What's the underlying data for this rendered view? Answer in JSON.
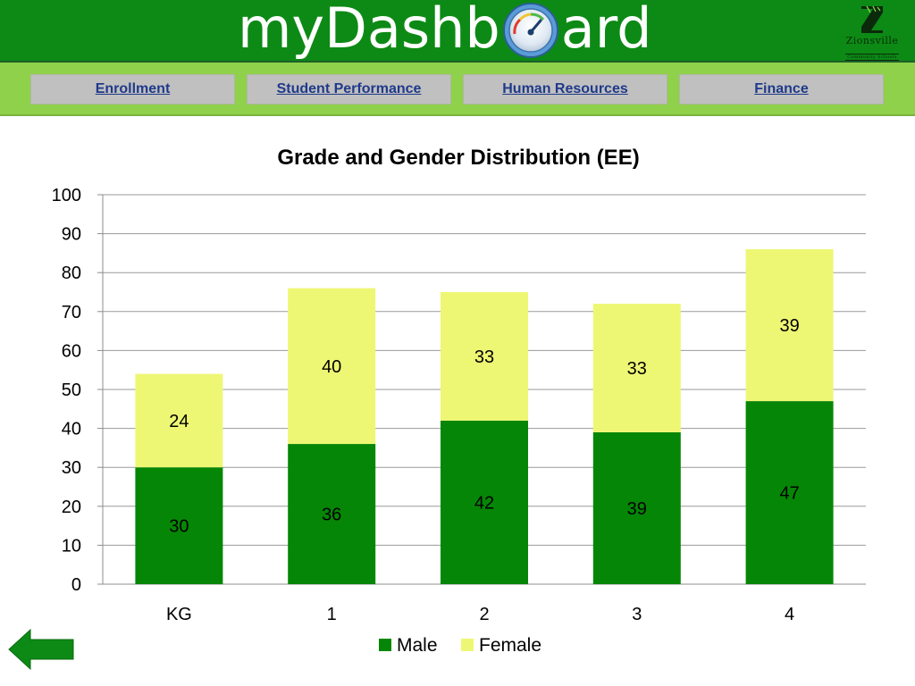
{
  "header": {
    "brand_prefix": "myDashb",
    "brand_suffix": "ard",
    "logo_line1": "Zionsville",
    "logo_line2": "Community Schools",
    "bg_color": "#0c8a15"
  },
  "nav": {
    "items": [
      {
        "label": "Enrollment"
      },
      {
        "label": "Student Performance"
      },
      {
        "label": "Human Resources"
      },
      {
        "label": "Finance"
      }
    ]
  },
  "back_button": {
    "icon": "left-arrow-icon",
    "color": "#0c8a15"
  },
  "chart_data": {
    "type": "bar",
    "stacked": true,
    "title": "Grade and Gender Distribution (EE)",
    "categories": [
      "KG",
      "1",
      "2",
      "3",
      "4"
    ],
    "series": [
      {
        "name": "Male",
        "values": [
          30,
          36,
          42,
          39,
          47
        ],
        "color": "#068606"
      },
      {
        "name": "Female",
        "values": [
          24,
          40,
          33,
          33,
          39
        ],
        "color": "#eef774"
      }
    ],
    "ylim": [
      0,
      100
    ],
    "yticks": [
      0,
      10,
      20,
      30,
      40,
      50,
      60,
      70,
      80,
      90,
      100
    ],
    "grid": true,
    "legend": "bottom",
    "xlabel": "",
    "ylabel": ""
  }
}
